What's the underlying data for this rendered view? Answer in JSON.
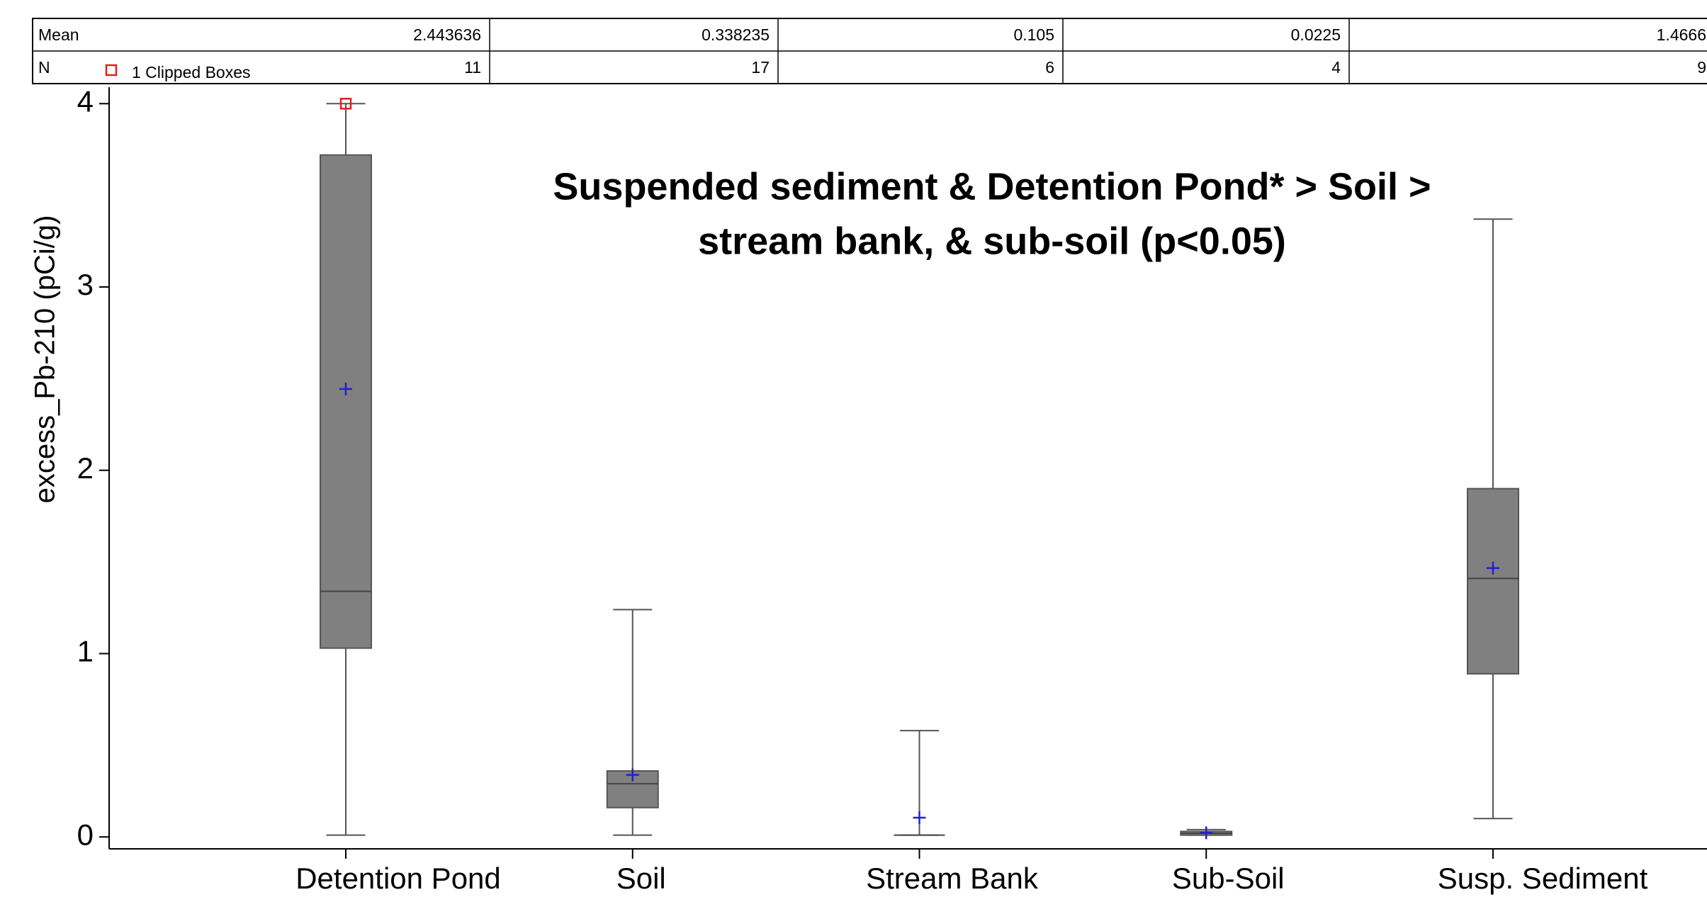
{
  "chart_data": {
    "type": "box",
    "title": [
      "Suspended sediment & Detention Pond* > Soil >",
      "stream bank, & sub-soil (p<0.05)"
    ],
    "y_label": "excess_Pb-210 (pCi/g)",
    "categories": [
      "Detention Pond",
      "Soil",
      "Stream Bank",
      "Sub-Soil",
      "Susp. Sediment"
    ],
    "whisker_low": [
      0.01,
      0.01,
      0.01,
      0.01,
      0.1
    ],
    "q1": [
      1.03,
      0.16,
      0.01,
      0.01,
      0.89
    ],
    "median": [
      1.34,
      0.29,
      0.01,
      0.02,
      1.41
    ],
    "q3": [
      3.72,
      0.36,
      0.01,
      0.03,
      1.9
    ],
    "whisker_high": [
      4,
      1.24,
      0.58,
      0.04,
      3.37
    ],
    "clipped": [
      4,
      null,
      null,
      null,
      null
    ],
    "clip_legend": "1 Clipped Boxes",
    "stats_table": {
      "rows": [
        {
          "label": "Mean",
          "values": [
            2.443636,
            0.338235,
            0.105,
            0.0225,
            1.4666
          ]
        },
        {
          "label": "N",
          "values": [
            11,
            17,
            6,
            4,
            9
          ]
        }
      ]
    },
    "box_color": "#808080",
    "mean_color": "#2020d0",
    "clip_color": "#e02020",
    "ylim": [
      -0.065,
      4.09
    ],
    "yticks": [
      0,
      1,
      2,
      3,
      4
    ]
  }
}
